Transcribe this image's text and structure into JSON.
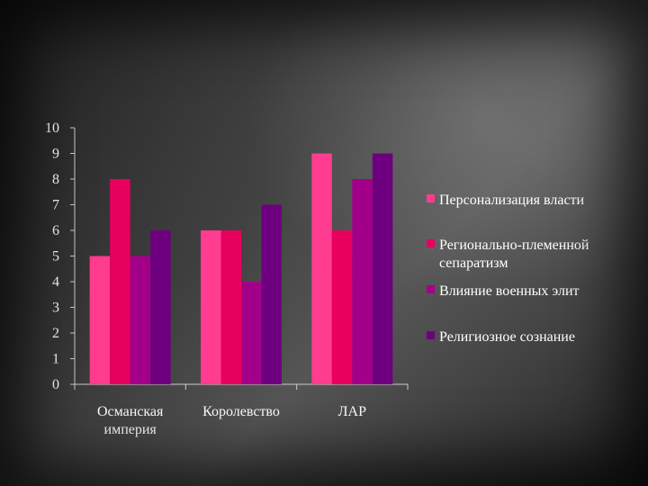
{
  "chart_data": {
    "type": "bar",
    "categories": [
      [
        "Османская",
        "империя"
      ],
      [
        "Королевство"
      ],
      [
        "ЛАР"
      ]
    ],
    "series": [
      {
        "name": [
          "Персонализация власти"
        ],
        "color": "#ff3c8f",
        "values": [
          5,
          6,
          9
        ]
      },
      {
        "name": [
          "Регионально-племенной",
          "сепаратизм"
        ],
        "color": "#e8005e",
        "values": [
          8,
          6,
          6
        ]
      },
      {
        "name": [
          "Влияние военных элит"
        ],
        "color": "#a3008a",
        "values": [
          5,
          4,
          8
        ]
      },
      {
        "name": [
          "Религиозное сознание"
        ],
        "color": "#6e0080",
        "values": [
          6,
          7,
          9
        ]
      }
    ],
    "ylim": [
      0,
      10
    ],
    "yticks": [
      0,
      1,
      2,
      3,
      4,
      5,
      6,
      7,
      8,
      9,
      10
    ],
    "grid": false,
    "legend_position": "right",
    "axis_color": "#cccccc"
  }
}
